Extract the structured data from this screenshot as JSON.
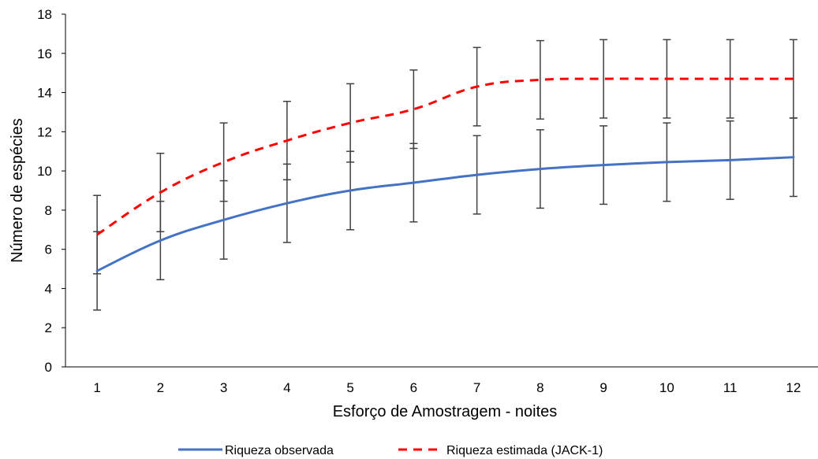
{
  "chart_data": {
    "type": "line",
    "xlabel": "Esforço de Amostragem - noites",
    "ylabel": "Número de espécies",
    "categories": [
      "1",
      "2",
      "3",
      "4",
      "5",
      "6",
      "7",
      "8",
      "9",
      "10",
      "11",
      "12"
    ],
    "ylim": [
      0,
      18
    ],
    "yticks": [
      0,
      2,
      4,
      6,
      8,
      10,
      12,
      14,
      16,
      18
    ],
    "grid": false,
    "legend_position": "bottom",
    "series": [
      {
        "name": "Riqueza observada",
        "color": "#4472C4",
        "line_style": "solid",
        "values": [
          4.9,
          6.45,
          7.5,
          8.35,
          9.0,
          9.4,
          9.8,
          10.1,
          10.3,
          10.45,
          10.55,
          10.7
        ],
        "error": [
          2.0,
          2.0,
          2.0,
          2.0,
          2.0,
          2.0,
          2.0,
          2.0,
          2.0,
          2.0,
          2.0,
          2.0
        ]
      },
      {
        "name": "Riqueza estimada (JACK-1)",
        "color": "#FF0000",
        "line_style": "dashed",
        "values": [
          6.75,
          8.9,
          10.45,
          11.55,
          12.45,
          13.15,
          14.3,
          14.65,
          14.7,
          14.7,
          14.7,
          14.7
        ],
        "error": [
          2.0,
          2.0,
          2.0,
          2.0,
          2.0,
          2.0,
          2.0,
          2.0,
          2.0,
          2.0,
          2.0,
          2.0
        ]
      }
    ]
  }
}
